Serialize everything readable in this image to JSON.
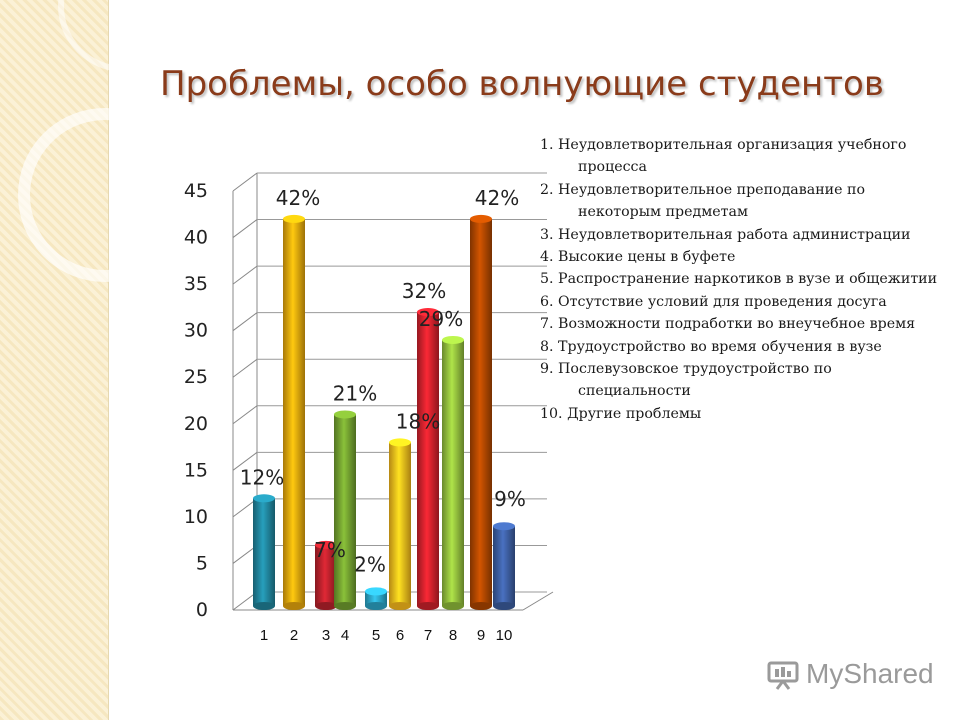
{
  "title": "Проблемы, особо волнующие студентов",
  "legend_items": [
    "1. Неудовлетворительная организация учебного процесса",
    "2. Неудовлетворительное преподавание по некоторым предметам",
    "3. Неудовлетворительная работа администрации",
    "4. Высокие цены в буфете",
    "5. Распространение наркотиков в вузе и общежитии",
    "6. Отсутствие условий для проведения досуга",
    "7. Возможности подработки во внеучебное время",
    "8. Трудоустройство во время обучения в вузе",
    "9. Послевузовское трудоустройство по специальности",
    "10. Другие проблемы"
  ],
  "logo": {
    "text": "MyShared"
  },
  "chart_data": {
    "type": "bar",
    "categories": [
      "1",
      "2",
      "3",
      "4",
      "5",
      "6",
      "7",
      "8",
      "9",
      "10"
    ],
    "values": [
      12,
      42,
      7,
      21,
      2,
      18,
      32,
      29,
      42,
      9
    ],
    "data_labels": [
      "12%",
      "42%",
      "7%",
      "21%",
      "2%",
      "18%",
      "32%",
      "29%",
      "42%",
      "9%"
    ],
    "colors": [
      "#1f7f96",
      "#e0a10c",
      "#b3202a",
      "#6e9a2e",
      "#2aa0c0",
      "#f2b51a",
      "#c8202a",
      "#8cb63a",
      "#a94400",
      "#3a5a9a"
    ],
    "yticks": [
      0,
      5,
      10,
      15,
      20,
      25,
      30,
      35,
      40,
      45
    ],
    "ylim": [
      0,
      45
    ],
    "title": "",
    "xlabel": "",
    "ylabel": "",
    "grid": true,
    "legend": "right"
  }
}
